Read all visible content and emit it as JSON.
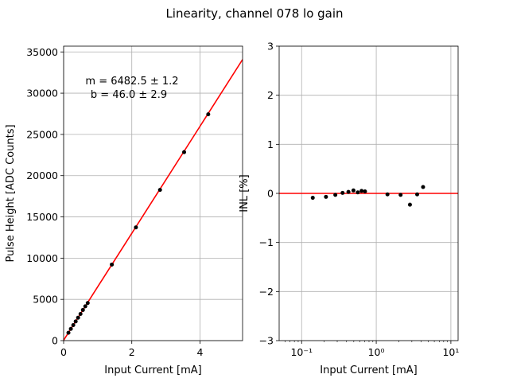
{
  "title": "Linearity, channel 078 lo gain",
  "chart_data": [
    {
      "type": "scatter",
      "xlabel": "Input Current [mA]",
      "ylabel": "Pulse Height [ADC Counts]",
      "xlim": [
        0,
        5.25
      ],
      "ylim": [
        0,
        35700
      ],
      "xticks": [
        0,
        2,
        4
      ],
      "yticks": [
        0,
        5000,
        10000,
        15000,
        20000,
        25000,
        30000,
        35000
      ],
      "grid": true,
      "annotation": [
        "m = 6482.5 ± 1.2",
        "b = 46.0 ± 2.9"
      ],
      "fit": {
        "slope": 6482.5,
        "intercept": 46.0,
        "color": "#ff0000"
      },
      "series": [
        {
          "color": "#000000",
          "x": [
            0.141,
            0.212,
            0.283,
            0.354,
            0.424,
            0.495,
            0.566,
            0.636,
            0.707,
            1.414,
            2.121,
            2.828,
            3.535,
            4.243
          ],
          "y": [
            950,
            1420,
            1880,
            2330,
            2780,
            3230,
            3720,
            4160,
            4560,
            9220,
            13730,
            18270,
            22850,
            27440
          ]
        }
      ]
    },
    {
      "type": "scatter",
      "xlabel": "Input Current [mA]",
      "ylabel": "INL [%]",
      "xscale": "log",
      "xlim": [
        0.05,
        12.5
      ],
      "ylim": [
        -3,
        3
      ],
      "xticks": [
        0.1,
        1,
        10
      ],
      "xtick_labels": [
        "10⁻¹",
        "10⁰",
        "10¹"
      ],
      "yticks": [
        -3,
        -2,
        -1,
        0,
        1,
        2,
        3
      ],
      "grid": true,
      "reference_line": {
        "y": 0,
        "color": "#ff0000"
      },
      "series": [
        {
          "color": "#000000",
          "x": [
            0.141,
            0.212,
            0.283,
            0.354,
            0.424,
            0.495,
            0.566,
            0.636,
            0.707,
            1.414,
            2.121,
            2.828,
            3.535,
            4.243
          ],
          "y": [
            -0.09,
            -0.07,
            -0.03,
            0.01,
            0.03,
            0.06,
            0.02,
            0.05,
            0.04,
            -0.02,
            -0.03,
            -0.23,
            -0.02,
            0.13
          ]
        }
      ]
    }
  ]
}
